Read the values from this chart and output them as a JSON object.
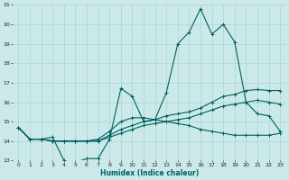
{
  "xlabel": "Humidex (Indice chaleur)",
  "background_color": "#cce9e9",
  "grid_color": "#aad4d4",
  "line_color": "#006060",
  "xlim": [
    -0.5,
    23.5
  ],
  "ylim": [
    13,
    21
  ],
  "xticks": [
    0,
    1,
    2,
    3,
    4,
    5,
    6,
    7,
    8,
    9,
    10,
    11,
    12,
    13,
    14,
    15,
    16,
    17,
    18,
    19,
    20,
    21,
    22,
    23
  ],
  "yticks": [
    13,
    14,
    15,
    16,
    17,
    18,
    19,
    20,
    21
  ],
  "series1_x": [
    0,
    1,
    2,
    3,
    4,
    5,
    6,
    7,
    8,
    9,
    10,
    11,
    12,
    13,
    14,
    15,
    16,
    17,
    18,
    19,
    20,
    21,
    22,
    23
  ],
  "series1_y": [
    14.7,
    14.1,
    14.1,
    14.2,
    13.0,
    12.9,
    13.1,
    13.1,
    14.1,
    16.7,
    16.3,
    15.0,
    15.1,
    16.5,
    19.0,
    19.6,
    20.8,
    19.5,
    20.0,
    19.1,
    16.0,
    15.4,
    15.3,
    14.5
  ],
  "series2_x": [
    0,
    1,
    2,
    3,
    4,
    5,
    6,
    7,
    8,
    9,
    10,
    11,
    12,
    13,
    14,
    15,
    16,
    17,
    18,
    19,
    20,
    21,
    22,
    23
  ],
  "series2_y": [
    14.7,
    14.1,
    14.1,
    14.0,
    14.0,
    14.0,
    14.0,
    14.0,
    14.3,
    14.6,
    14.8,
    15.0,
    15.1,
    15.3,
    15.4,
    15.5,
    15.7,
    16.0,
    16.3,
    16.4,
    16.6,
    16.65,
    16.6,
    16.6
  ],
  "series3_x": [
    0,
    1,
    2,
    3,
    4,
    5,
    6,
    7,
    8,
    9,
    10,
    11,
    12,
    13,
    14,
    15,
    16,
    17,
    18,
    19,
    20,
    21,
    22,
    23
  ],
  "series3_y": [
    14.7,
    14.1,
    14.1,
    14.0,
    14.0,
    14.0,
    14.0,
    14.0,
    14.2,
    14.4,
    14.6,
    14.8,
    14.9,
    15.0,
    15.1,
    15.2,
    15.4,
    15.6,
    15.8,
    15.9,
    16.0,
    16.1,
    16.0,
    15.9
  ],
  "series4_x": [
    0,
    1,
    2,
    3,
    4,
    5,
    6,
    7,
    8,
    9,
    10,
    11,
    12,
    13,
    14,
    15,
    16,
    17,
    18,
    19,
    20,
    21,
    22,
    23
  ],
  "series4_y": [
    14.7,
    14.1,
    14.1,
    14.0,
    14.0,
    14.0,
    14.0,
    14.1,
    14.5,
    15.0,
    15.2,
    15.2,
    15.1,
    15.0,
    14.9,
    14.8,
    14.6,
    14.5,
    14.4,
    14.3,
    14.3,
    14.3,
    14.3,
    14.4
  ]
}
